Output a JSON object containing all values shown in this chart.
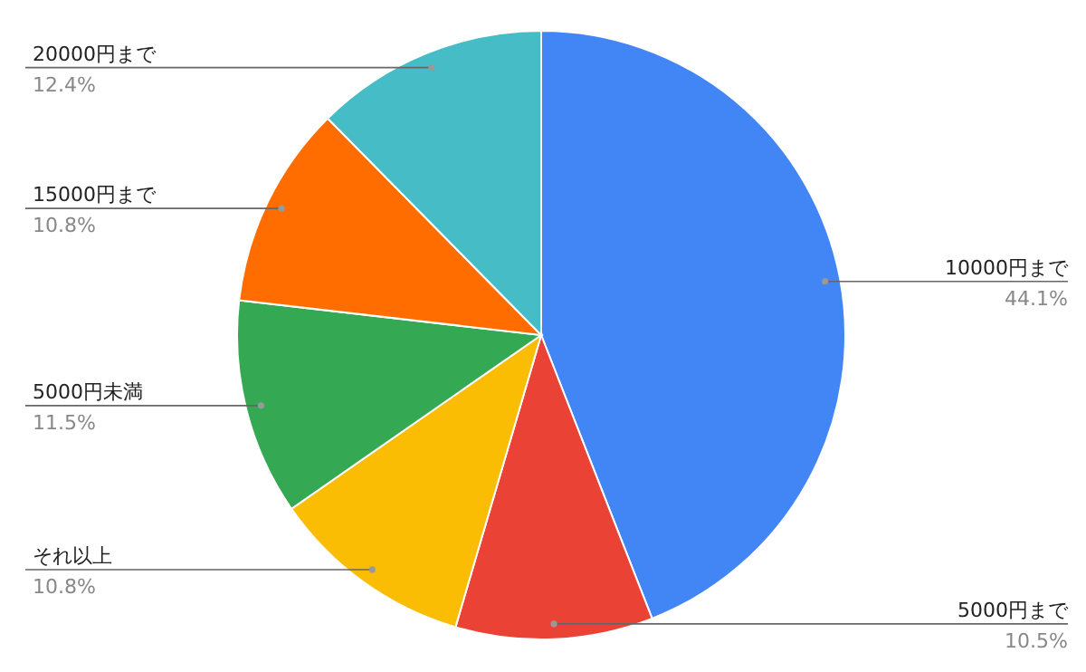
{
  "chart_data": {
    "type": "pie",
    "categories": [
      "10000円まで",
      "5000円まで",
      "それ以上",
      "5000円未満",
      "15000円まで",
      "20000円まで"
    ],
    "values": [
      44.1,
      10.5,
      10.8,
      11.5,
      10.8,
      12.4
    ],
    "value_labels": [
      "44.1%",
      "10.5%",
      "10.8%",
      "11.5%",
      "10.8%",
      "12.4%"
    ],
    "colors": [
      "#4285f4",
      "#ea4335",
      "#fbbc04",
      "#34a853",
      "#ff6d01",
      "#46bdc6"
    ]
  }
}
